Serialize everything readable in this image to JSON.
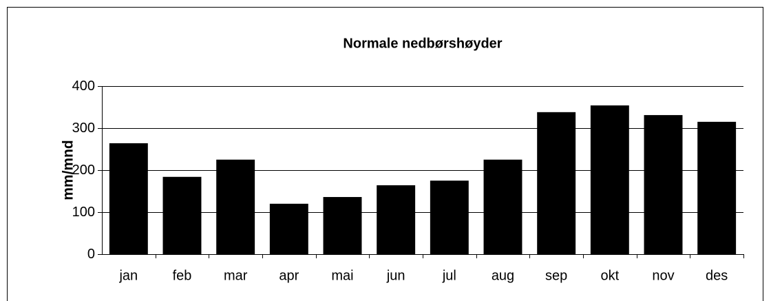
{
  "chart_data": {
    "type": "bar",
    "title": "Normale nedbørshøyder",
    "y_label": "mm/mnd",
    "categories": [
      "jan",
      "feb",
      "mar",
      "apr",
      "mai",
      "jun",
      "jul",
      "aug",
      "sep",
      "okt",
      "nov",
      "des"
    ],
    "values": [
      264,
      184,
      225,
      120,
      136,
      164,
      175,
      225,
      338,
      354,
      331,
      315
    ],
    "color": "#000000",
    "ylim": [
      0,
      400
    ],
    "yticks": [
      0,
      100,
      200,
      300,
      400
    ],
    "grid": true
  }
}
